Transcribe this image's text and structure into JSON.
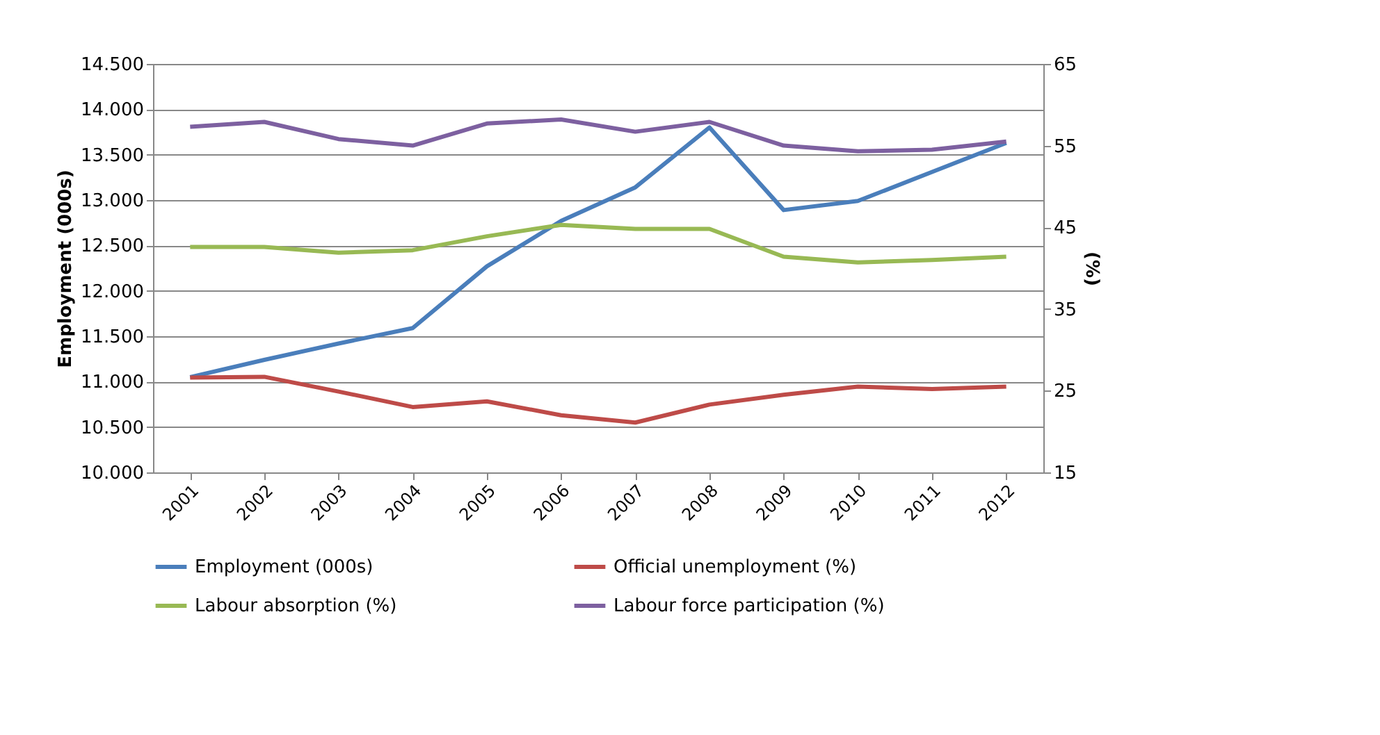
{
  "chart_data": {
    "type": "line",
    "ylabel": "Employment (000s)",
    "y2label": "(%)",
    "categories": [
      "2001",
      "2002",
      "2003",
      "2004",
      "2005",
      "2006",
      "2007",
      "2008",
      "2009",
      "2010",
      "2011",
      "2012"
    ],
    "series": [
      {
        "name": "Employment (000s)",
        "color": "#4a7ebb",
        "values": [
          11050,
          11240,
          11420,
          11590,
          12270,
          12770,
          13140,
          13800,
          12890,
          12990,
          13310,
          13630
        ]
      },
      {
        "name": "Official unemployment (%)",
        "color": "#be4b48",
        "axis": "y2",
        "values": [
          26.6,
          26.7,
          24.9,
          23.0,
          23.7,
          22.0,
          21.1,
          23.3,
          24.5,
          25.5,
          25.2,
          25.5
        ]
      },
      {
        "name": "Labour absorption (%)",
        "color": "#98b954",
        "axis": "y2",
        "values": [
          42.6,
          42.6,
          41.9,
          42.2,
          43.9,
          45.3,
          44.8,
          44.8,
          41.4,
          40.7,
          41.0,
          41.4
        ]
      },
      {
        "name": "Labour force participation (%)",
        "color": "#7d60a0",
        "axis": "y2",
        "values": [
          57.3,
          57.9,
          55.8,
          55.0,
          57.7,
          58.2,
          56.7,
          57.9,
          55.0,
          54.3,
          54.5,
          55.5
        ]
      }
    ],
    "ylim": [
      10000,
      14500
    ],
    "yticks": [
      {
        "value": 10000,
        "label": "10.000"
      },
      {
        "value": 10500,
        "label": "10.500"
      },
      {
        "value": 11000,
        "label": "11.000"
      },
      {
        "value": 11500,
        "label": "11.500"
      },
      {
        "value": 12000,
        "label": "12.000"
      },
      {
        "value": 12500,
        "label": "12.500"
      },
      {
        "value": 13000,
        "label": "13.000"
      },
      {
        "value": 13500,
        "label": "13.500"
      },
      {
        "value": 14000,
        "label": "14.000"
      },
      {
        "value": 14500,
        "label": "14.500"
      }
    ],
    "y2lim": [
      15,
      65
    ],
    "y2ticks": [
      15,
      25,
      35,
      45,
      55,
      65
    ],
    "grid": "y",
    "legend": "bottom",
    "marker": "none",
    "line_style": "solid"
  }
}
